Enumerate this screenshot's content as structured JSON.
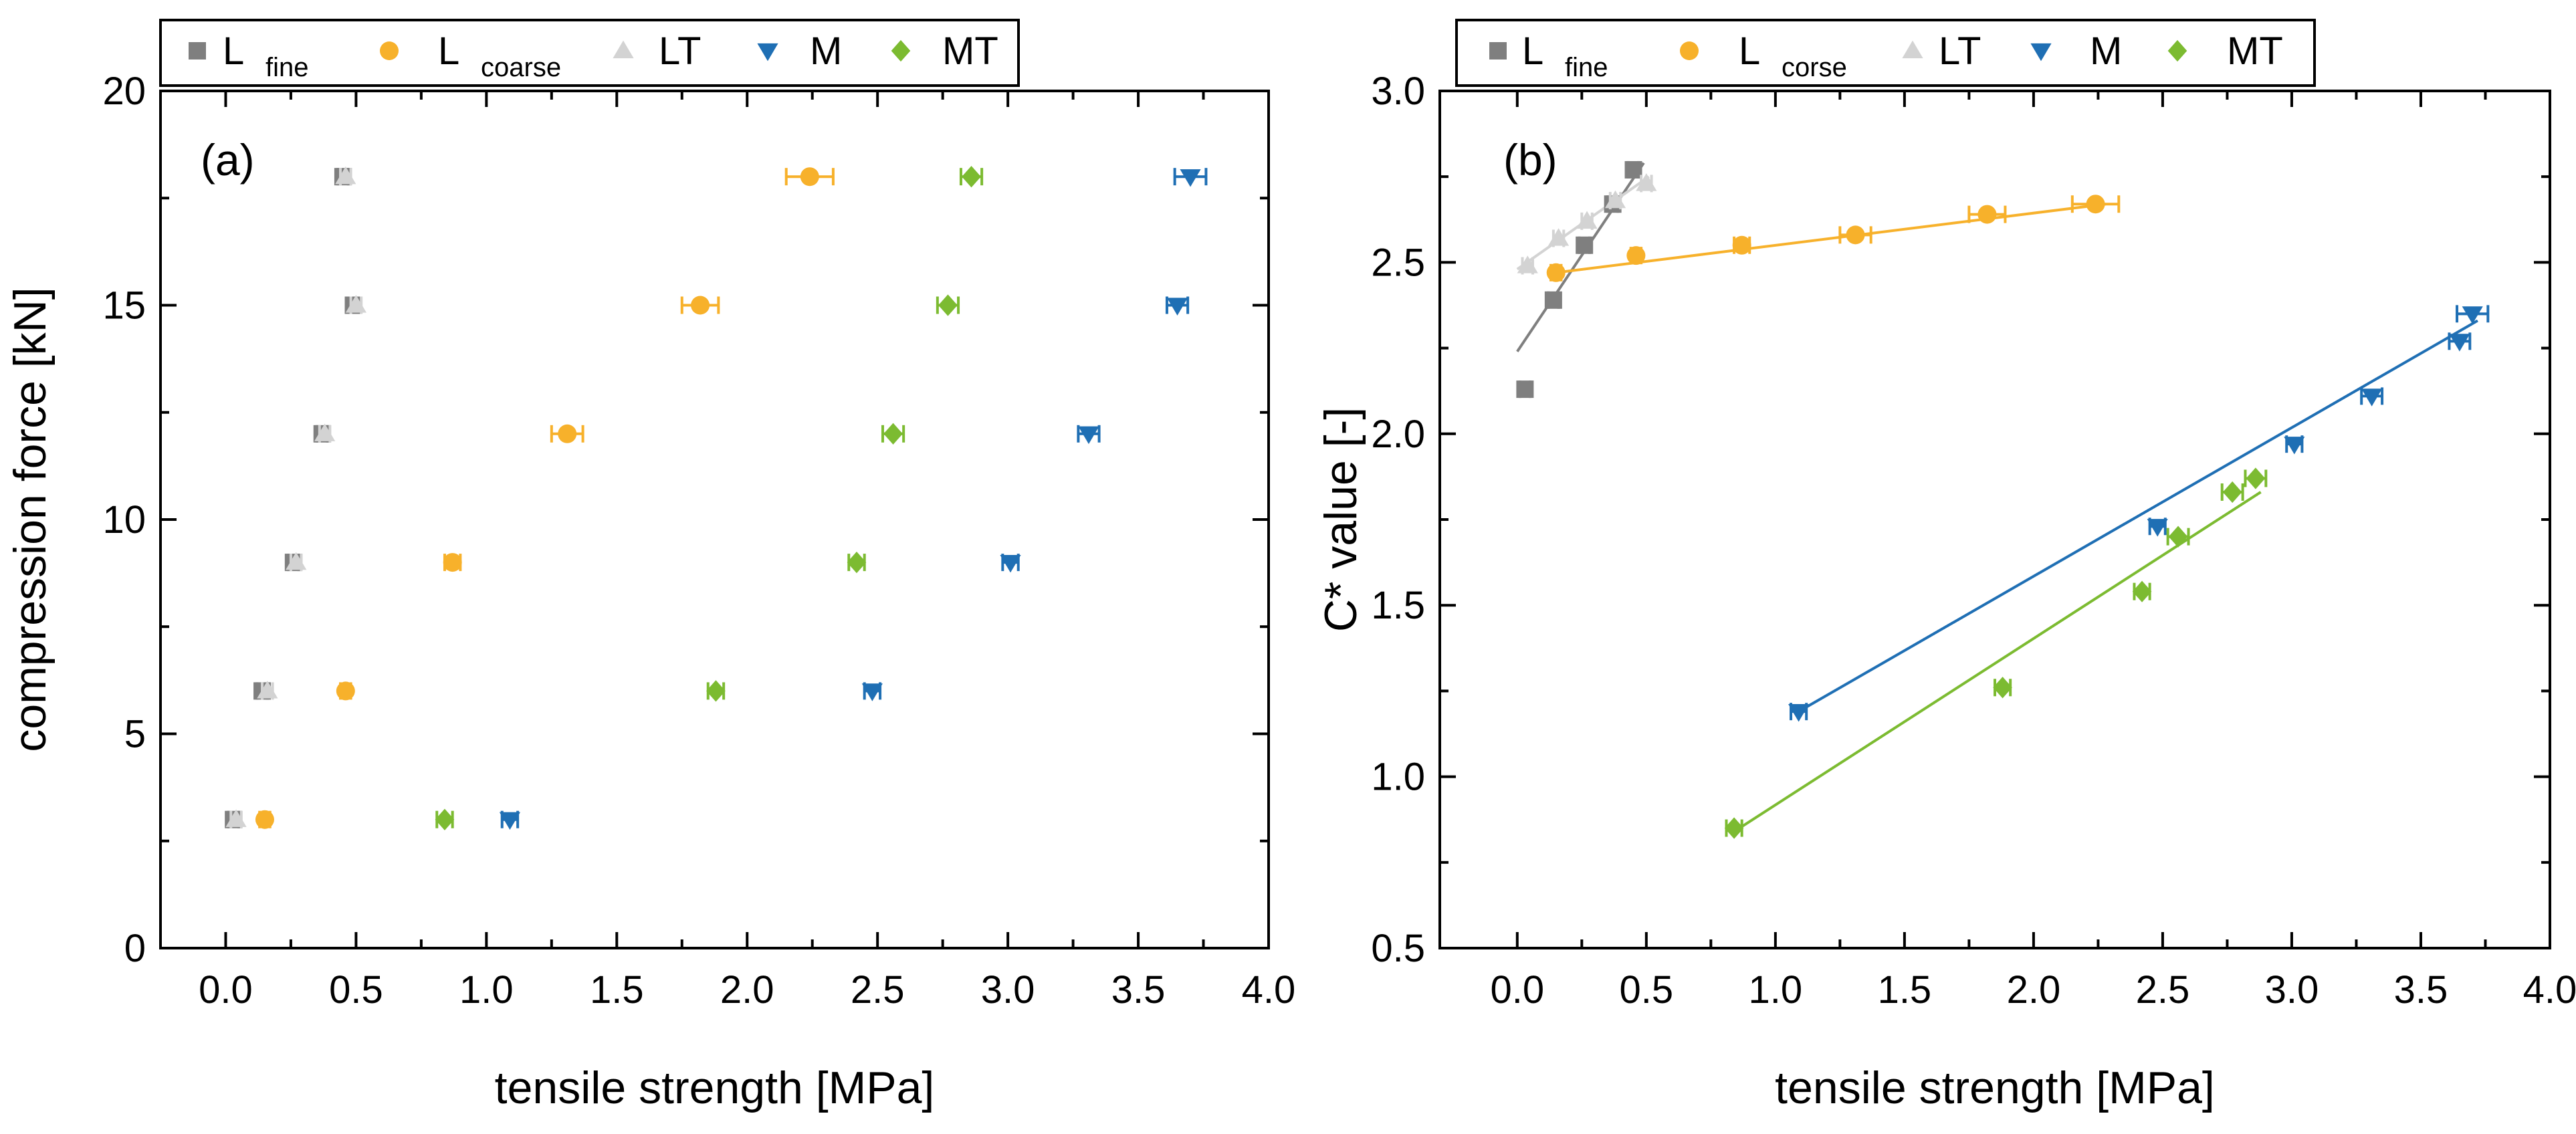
{
  "chart_data": [
    {
      "id": "a",
      "type": "scatter",
      "panel_label": "(a)",
      "xlabel": "tensile strength [MPa]",
      "ylabel": "compression force [kN]",
      "xlim": [
        -0.25,
        4.0
      ],
      "ylim": [
        0,
        20
      ],
      "xticks": [
        0.0,
        0.5,
        1.0,
        1.5,
        2.0,
        2.5,
        3.0,
        3.5,
        4.0
      ],
      "xtick_labels": [
        "0.0",
        "0.5",
        "1.0",
        "1.5",
        "2.0",
        "2.5",
        "3.0",
        "3.5",
        "4.0"
      ],
      "yticks": [
        0,
        5,
        10,
        15,
        20
      ],
      "ytick_labels": [
        "0",
        "5",
        "10",
        "15",
        "20"
      ],
      "legend": [
        "L_fine",
        "L_coarse",
        "LT",
        "M",
        "MT"
      ],
      "series": [
        {
          "name": "L_fine",
          "label": "L",
          "sub": "fine",
          "marker": "square",
          "color": "#7f7f7f",
          "points": [
            [
              0.03,
              3,
              0.02
            ],
            [
              0.14,
              6,
              0.02
            ],
            [
              0.26,
              9,
              0.02
            ],
            [
              0.37,
              12,
              0.02
            ],
            [
              0.45,
              18,
              0.02
            ],
            [
              0.49,
              15,
              0.02
            ]
          ]
        },
        {
          "name": "L_coarse",
          "label": "L",
          "sub": "coarse",
          "marker": "circle",
          "color": "#f7b12b",
          "points": [
            [
              0.15,
              3,
              0.02
            ],
            [
              0.46,
              6,
              0.02
            ],
            [
              0.87,
              9,
              0.03
            ],
            [
              1.31,
              12,
              0.06
            ],
            [
              1.82,
              15,
              0.07
            ],
            [
              2.24,
              18,
              0.09
            ]
          ]
        },
        {
          "name": "LT",
          "label": "LT",
          "sub": "",
          "marker": "triangle-up",
          "color": "#d3d3d3",
          "points": [
            [
              0.04,
              3,
              0.02
            ],
            [
              0.16,
              6,
              0.02
            ],
            [
              0.27,
              9,
              0.02
            ],
            [
              0.38,
              12,
              0.02
            ],
            [
              0.46,
              18,
              0.02
            ],
            [
              0.5,
              15,
              0.02
            ]
          ]
        },
        {
          "name": "M",
          "label": "M",
          "sub": "",
          "marker": "triangle-down",
          "color": "#1f6fb4",
          "points": [
            [
              1.09,
              3,
              0.03
            ],
            [
              2.48,
              6,
              0.03
            ],
            [
              3.01,
              9,
              0.03
            ],
            [
              3.31,
              12,
              0.04
            ],
            [
              3.65,
              15,
              0.04
            ],
            [
              3.7,
              18,
              0.06
            ]
          ]
        },
        {
          "name": "MT",
          "label": "MT",
          "sub": "",
          "marker": "diamond",
          "color": "#7cbb31",
          "points": [
            [
              0.84,
              3,
              0.03
            ],
            [
              1.88,
              6,
              0.03
            ],
            [
              2.42,
              9,
              0.03
            ],
            [
              2.56,
              12,
              0.04
            ],
            [
              2.77,
              15,
              0.04
            ],
            [
              2.86,
              18,
              0.04
            ]
          ]
        }
      ]
    },
    {
      "id": "b",
      "type": "scatter",
      "panel_label": "(b)",
      "xlabel": "tensile strength [MPa]",
      "ylabel": "C* value [-]",
      "xlim": [
        -0.3,
        4.0
      ],
      "ylim": [
        0.5,
        3.0
      ],
      "xticks": [
        0.0,
        0.5,
        1.0,
        1.5,
        2.0,
        2.5,
        3.0,
        3.5,
        4.0
      ],
      "xtick_labels": [
        "0.0",
        "0.5",
        "1.0",
        "1.5",
        "2.0",
        "2.5",
        "3.0",
        "3.5",
        "4.0"
      ],
      "yticks": [
        0.5,
        1.0,
        1.5,
        2.0,
        2.5,
        3.0
      ],
      "ytick_labels": [
        "0.5",
        "1.0",
        "1.5",
        "2.0",
        "2.5",
        "3.0"
      ],
      "legend": [
        "L_fine",
        "L_corse",
        "LT",
        "M",
        "MT"
      ],
      "series": [
        {
          "name": "L_fine",
          "label": "L",
          "sub": "fine",
          "marker": "square",
          "color": "#7f7f7f",
          "points": [
            [
              0.03,
              2.13,
              0.02
            ],
            [
              0.14,
              2.39,
              0.02
            ],
            [
              0.26,
              2.55,
              0.02
            ],
            [
              0.37,
              2.67,
              0.02
            ],
            [
              0.45,
              2.77,
              0.02
            ]
          ],
          "fit": [
            [
              0.0,
              2.24
            ],
            [
              0.49,
              2.79
            ]
          ]
        },
        {
          "name": "L_corse",
          "label": "L",
          "sub": "corse",
          "marker": "circle",
          "color": "#f7b12b",
          "points": [
            [
              0.15,
              2.47,
              0.02
            ],
            [
              0.46,
              2.52,
              0.02
            ],
            [
              0.87,
              2.55,
              0.03
            ],
            [
              1.31,
              2.58,
              0.06
            ],
            [
              1.82,
              2.64,
              0.07
            ],
            [
              2.24,
              2.67,
              0.09
            ]
          ],
          "fit": [
            [
              0.15,
              2.47
            ],
            [
              2.28,
              2.67
            ]
          ]
        },
        {
          "name": "LT",
          "label": "LT",
          "sub": "",
          "marker": "triangle-up",
          "color": "#d3d3d3",
          "points": [
            [
              0.04,
              2.49,
              0.02
            ],
            [
              0.16,
              2.57,
              0.02
            ],
            [
              0.27,
              2.62,
              0.02
            ],
            [
              0.38,
              2.68,
              0.02
            ],
            [
              0.5,
              2.73,
              0.02
            ]
          ],
          "fit": [
            [
              0.0,
              2.48
            ],
            [
              0.51,
              2.75
            ]
          ]
        },
        {
          "name": "M",
          "label": "M",
          "sub": "",
          "marker": "triangle-down",
          "color": "#1f6fb4",
          "points": [
            [
              1.09,
              1.19,
              0.03
            ],
            [
              2.48,
              1.73,
              0.03
            ],
            [
              3.01,
              1.97,
              0.03
            ],
            [
              3.31,
              2.11,
              0.04
            ],
            [
              3.65,
              2.27,
              0.04
            ],
            [
              3.7,
              2.35,
              0.06
            ]
          ],
          "fit": [
            [
              1.09,
              1.19
            ],
            [
              3.72,
              2.33
            ]
          ]
        },
        {
          "name": "MT",
          "label": "MT",
          "sub": "",
          "marker": "diamond",
          "color": "#7cbb31",
          "points": [
            [
              0.84,
              0.85,
              0.03
            ],
            [
              1.88,
              1.26,
              0.03
            ],
            [
              2.42,
              1.54,
              0.03
            ],
            [
              2.56,
              1.7,
              0.04
            ],
            [
              2.77,
              1.83,
              0.04
            ],
            [
              2.86,
              1.87,
              0.04
            ]
          ],
          "fit": [
            [
              0.84,
              0.84
            ],
            [
              2.88,
              1.83
            ]
          ]
        }
      ]
    }
  ]
}
